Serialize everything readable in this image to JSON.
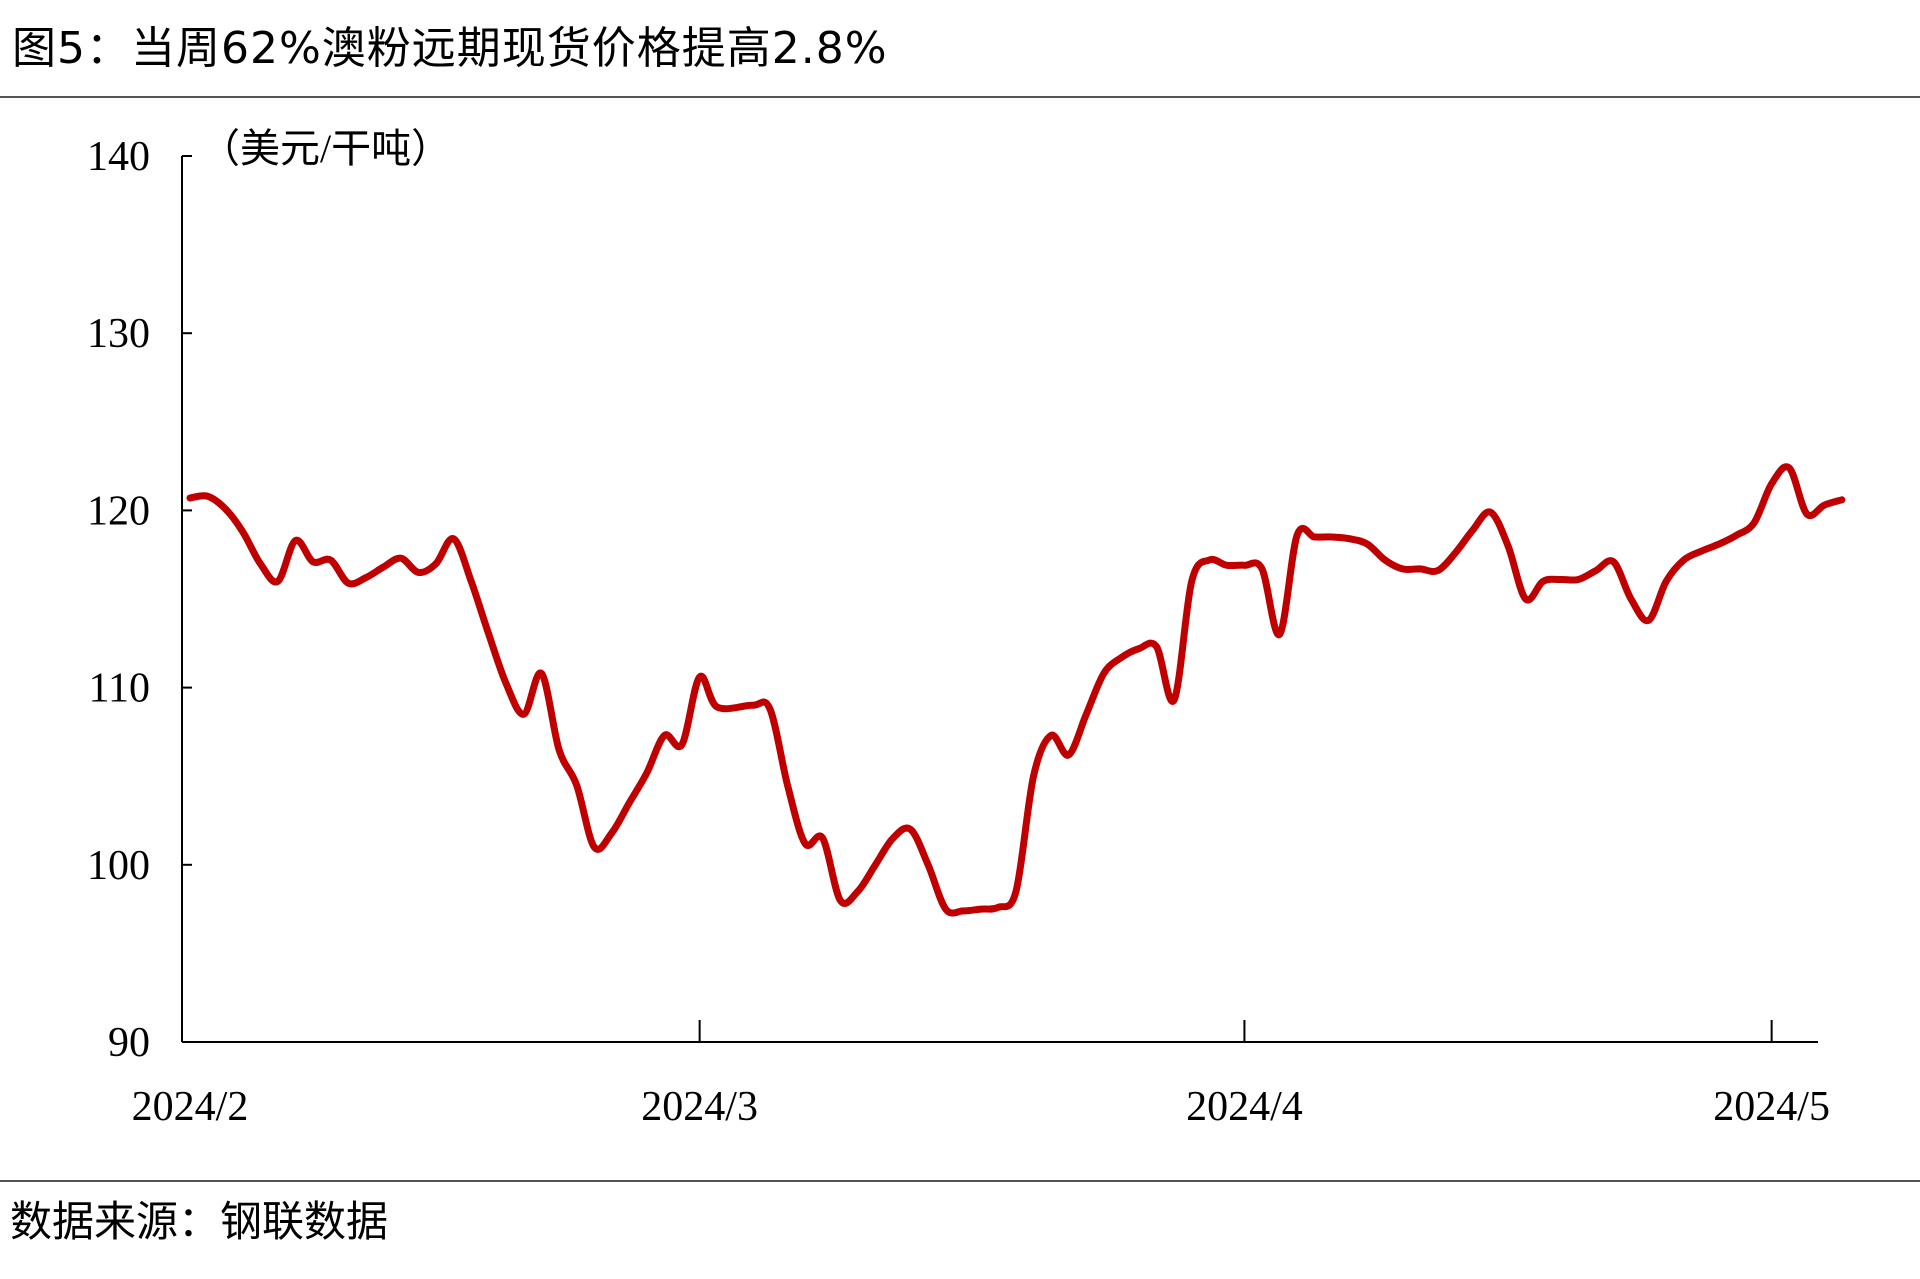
{
  "title": "图5：当周62%澳粉远期现货价格提高2.8%",
  "source": "数据来源：钢联数据",
  "chart_data": {
    "type": "line",
    "unit_label": "（美元/干吨）",
    "y_ticks": [
      90,
      100,
      110,
      120,
      130,
      140
    ],
    "ylim": [
      90,
      140
    ],
    "x_ticks": [
      "2024/2",
      "2024/3",
      "2024/4",
      "2024/5"
    ],
    "grid": false,
    "line_color": "#C00000",
    "series": [
      {
        "name": "",
        "points": [
          [
            "2024-02-01",
            120.7
          ],
          [
            "2024-02-02",
            120.8
          ],
          [
            "2024-02-03",
            120.1
          ],
          [
            "2024-02-04",
            118.8
          ],
          [
            "2024-02-05",
            117.0
          ],
          [
            "2024-02-06",
            116.0
          ],
          [
            "2024-02-07",
            118.3
          ],
          [
            "2024-02-08",
            117.1
          ],
          [
            "2024-02-09",
            117.2
          ],
          [
            "2024-02-10",
            115.9
          ],
          [
            "2024-02-11",
            116.2
          ],
          [
            "2024-02-12",
            116.8
          ],
          [
            "2024-02-13",
            117.3
          ],
          [
            "2024-02-14",
            116.5
          ],
          [
            "2024-02-15",
            117.0
          ],
          [
            "2024-02-16",
            118.4
          ],
          [
            "2024-02-17",
            116.0
          ],
          [
            "2024-02-18",
            113.0
          ],
          [
            "2024-02-19",
            110.2
          ],
          [
            "2024-02-20",
            108.5
          ],
          [
            "2024-02-21",
            110.8
          ],
          [
            "2024-02-22",
            106.5
          ],
          [
            "2024-02-23",
            104.5
          ],
          [
            "2024-02-24",
            101.0
          ],
          [
            "2024-02-25",
            101.8
          ],
          [
            "2024-02-26",
            103.5
          ],
          [
            "2024-02-27",
            105.2
          ],
          [
            "2024-02-28",
            107.3
          ],
          [
            "2024-02-29",
            106.8
          ],
          [
            "2024-03-01",
            110.6
          ],
          [
            "2024-03-02",
            108.9
          ],
          [
            "2024-03-04",
            109.0
          ],
          [
            "2024-03-05",
            108.8
          ],
          [
            "2024-03-06",
            104.5
          ],
          [
            "2024-03-07",
            101.2
          ],
          [
            "2024-03-08",
            101.5
          ],
          [
            "2024-03-09",
            98.0
          ],
          [
            "2024-03-10",
            98.5
          ],
          [
            "2024-03-11",
            100.0
          ],
          [
            "2024-03-12",
            101.5
          ],
          [
            "2024-03-13",
            102.0
          ],
          [
            "2024-03-14",
            100.0
          ],
          [
            "2024-03-15",
            97.5
          ],
          [
            "2024-03-16",
            97.4
          ],
          [
            "2024-03-17",
            97.5
          ],
          [
            "2024-03-18",
            97.6
          ],
          [
            "2024-03-19",
            98.5
          ],
          [
            "2024-03-20",
            105.0
          ],
          [
            "2024-03-21",
            107.3
          ],
          [
            "2024-03-22",
            106.2
          ],
          [
            "2024-03-23",
            108.5
          ],
          [
            "2024-03-24",
            110.8
          ],
          [
            "2024-03-25",
            111.7
          ],
          [
            "2024-03-26",
            112.2
          ],
          [
            "2024-03-27",
            112.3
          ],
          [
            "2024-03-28",
            109.3
          ],
          [
            "2024-03-29",
            116.0
          ],
          [
            "2024-03-30",
            117.2
          ],
          [
            "2024-03-31",
            116.9
          ],
          [
            "2024-04-01",
            116.9
          ],
          [
            "2024-04-02",
            116.7
          ],
          [
            "2024-04-03",
            113.0
          ],
          [
            "2024-04-04",
            118.6
          ],
          [
            "2024-04-05",
            118.5
          ],
          [
            "2024-04-06",
            118.5
          ],
          [
            "2024-04-07",
            118.4
          ],
          [
            "2024-04-08",
            118.1
          ],
          [
            "2024-04-09",
            117.2
          ],
          [
            "2024-04-10",
            116.7
          ],
          [
            "2024-04-11",
            116.7
          ],
          [
            "2024-04-12",
            116.6
          ],
          [
            "2024-04-13",
            117.6
          ],
          [
            "2024-04-14",
            118.9
          ],
          [
            "2024-04-15",
            119.9
          ],
          [
            "2024-04-16",
            118.0
          ],
          [
            "2024-04-17",
            115.0
          ],
          [
            "2024-04-18",
            116.0
          ],
          [
            "2024-04-19",
            116.1
          ],
          [
            "2024-04-20",
            116.1
          ],
          [
            "2024-04-21",
            116.6
          ],
          [
            "2024-04-22",
            117.1
          ],
          [
            "2024-04-23",
            115.0
          ],
          [
            "2024-04-24",
            113.8
          ],
          [
            "2024-04-25",
            116.0
          ],
          [
            "2024-04-26",
            117.2
          ],
          [
            "2024-04-27",
            117.7
          ],
          [
            "2024-04-28",
            118.1
          ],
          [
            "2024-04-29",
            118.6
          ],
          [
            "2024-04-30",
            119.3
          ],
          [
            "2024-05-01",
            121.5
          ],
          [
            "2024-05-02",
            122.4
          ],
          [
            "2024-05-03",
            119.8
          ],
          [
            "2024-05-04",
            120.3
          ],
          [
            "2024-05-05",
            120.6
          ]
        ]
      }
    ]
  }
}
